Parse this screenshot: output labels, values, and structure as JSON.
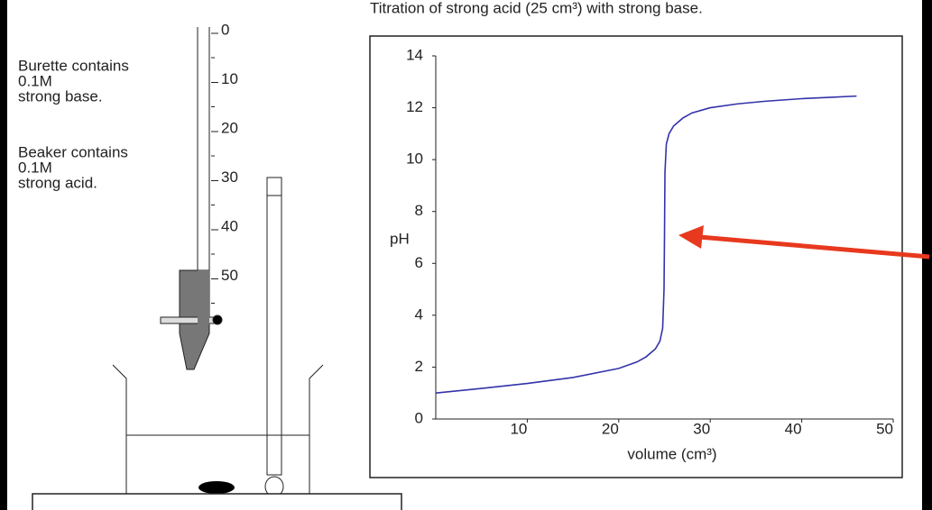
{
  "chart_data": {
    "type": "line",
    "title": "Titration of strong acid (25 cm³) with strong base.",
    "x_label": "volume (cm³)",
    "y_label": "pH",
    "xlim": [
      0,
      50
    ],
    "ylim": [
      0,
      14
    ],
    "xticks": [
      10,
      20,
      30,
      40,
      50
    ],
    "yticks": [
      0,
      2,
      4,
      6,
      8,
      10,
      12,
      14
    ],
    "grid": false,
    "series": [
      {
        "color": "#3333aa",
        "x": [
          0,
          5,
          10,
          15,
          20,
          22,
          23,
          24,
          24.5,
          24.8,
          24.95,
          25,
          25.05,
          25.2,
          25.5,
          26,
          27,
          28,
          30,
          33,
          36,
          40,
          43,
          46
        ],
        "values": [
          1.0,
          1.18,
          1.37,
          1.6,
          1.95,
          2.2,
          2.4,
          2.7,
          3.0,
          3.5,
          5.0,
          7.0,
          9.5,
          10.6,
          11.0,
          11.3,
          11.6,
          11.8,
          12.0,
          12.15,
          12.25,
          12.35,
          12.4,
          12.45
        ]
      }
    ]
  },
  "apparatus": {
    "burette_text": [
      "Burette contains",
      "0.1M",
      "strong base."
    ],
    "beaker_text": [
      "Beaker contains",
      "0.1M",
      "strong acid."
    ],
    "burette_scale": [
      0,
      10,
      20,
      30,
      40,
      50
    ]
  }
}
